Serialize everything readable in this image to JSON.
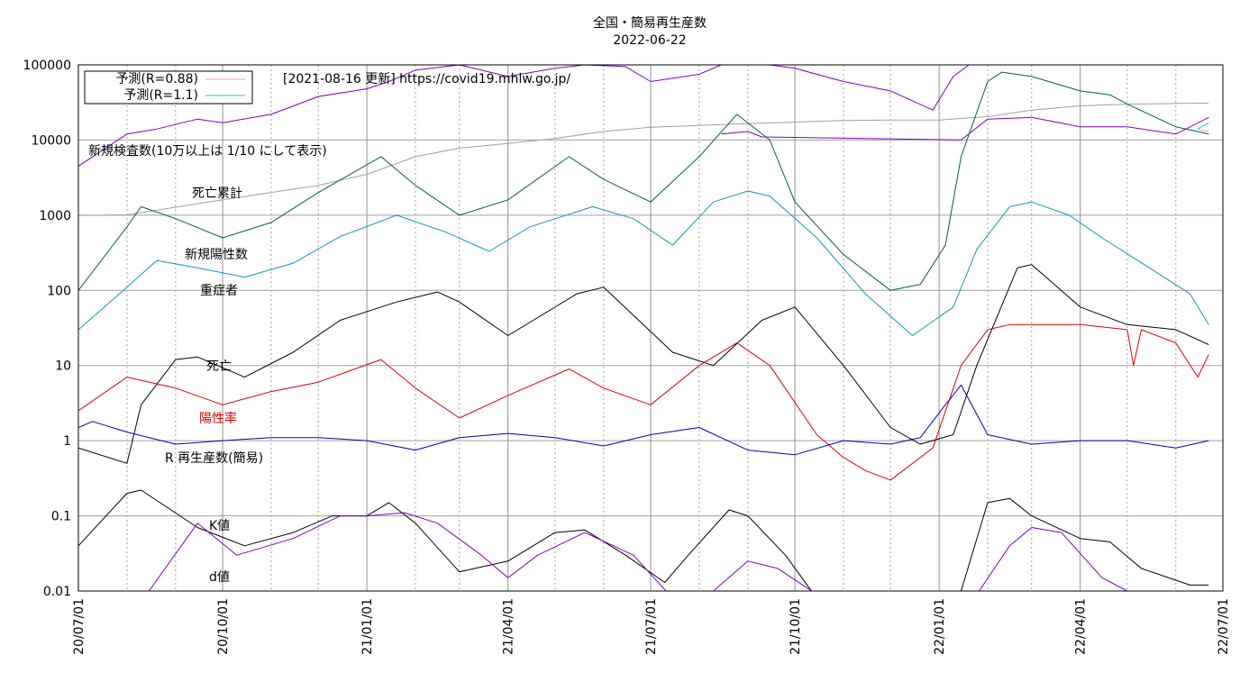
{
  "chart_data": {
    "type": "line",
    "title": "全国・簡易再生産数",
    "subtitle": "2022-06-22",
    "source_note": "[2021-08-16 更新] https://covid19.mhlw.go.jp/",
    "y_scale": "log",
    "ylim": [
      0.01,
      100000
    ],
    "y_ticks": [
      "0.01",
      "0.1",
      "1",
      "10",
      "100",
      "1000",
      "10000",
      "100000"
    ],
    "x_range": [
      "2020-07-01",
      "2022-07-01"
    ],
    "x_ticks": [
      "20/07/01",
      "20/10/01",
      "21/01/01",
      "21/04/01",
      "21/07/01",
      "21/10/01",
      "22/01/01",
      "22/04/01",
      "22/07/01"
    ],
    "grid": true,
    "legend_position": "top-left",
    "legend": [
      {
        "label": "予測(R=0.88)",
        "color": "#f0a0a0"
      },
      {
        "label": "予測(R=1.1)",
        "color": "#20c8c8"
      }
    ],
    "annotations": [
      {
        "text": "新規検査数(10万以上は 1/10 にして表示)",
        "color": "#000000"
      },
      {
        "text": "死亡累計",
        "color": "#000000"
      },
      {
        "text": "新規陽性数",
        "color": "#000000"
      },
      {
        "text": "重症者",
        "color": "#000000"
      },
      {
        "text": "死亡",
        "color": "#000000"
      },
      {
        "text": "陽性率",
        "color": "#e00000"
      },
      {
        "text": "R 再生産数(簡易)",
        "color": "#000000"
      },
      {
        "text": "K値",
        "color": "#000000"
      },
      {
        "text": "d値",
        "color": "#000000"
      }
    ],
    "series": [
      {
        "key": "tests",
        "color": "#8000c0",
        "x": [
          "2020-07-01",
          "2020-08-01",
          "2020-08-20",
          "2020-09-15",
          "2020-10-01",
          "2020-11-01",
          "2020-12-01",
          "2021-01-01",
          "2021-01-15",
          "2021-02-01",
          "2021-03-01",
          "2021-04-01",
          "2021-05-01",
          "2021-05-20",
          "2021-06-15",
          "2021-07-01",
          "2021-08-01",
          "2021-08-15",
          "2021-09-01",
          "2021-09-15",
          "2021-10-01",
          "2021-11-01",
          "2021-12-01",
          "2021-12-28",
          "2022-01-10",
          "2022-01-20",
          "2022-02-01",
          "2022-02-15",
          "2022-03-01",
          "2022-04-01",
          "2022-05-01",
          "2022-06-01",
          "2022-06-22"
        ],
        "values": [
          4500,
          12000,
          14000,
          19000,
          17000,
          22000,
          38000,
          48000,
          60000,
          85000,
          100000,
          70000,
          90000,
          100000,
          95000,
          60000,
          75000,
          100000,
          100000,
          100000,
          90000,
          60000,
          45000,
          25000,
          70000,
          100000,
          100000,
          100000,
          100000,
          100000,
          100000,
          100000,
          100000
        ]
      },
      {
        "key": "tests_reduced",
        "color": "#8000c0",
        "x": [
          "2021-08-15",
          "2021-09-01",
          "2021-09-10",
          "2022-01-15",
          "2022-02-01",
          "2022-03-01",
          "2022-04-01",
          "2022-05-01",
          "2022-06-01",
          "2022-06-22"
        ],
        "values": [
          12000,
          13000,
          11000,
          10000,
          19000,
          20000,
          15000,
          15000,
          12000,
          20000
        ]
      },
      {
        "key": "deaths_cumulative",
        "color": "#a0a0a0",
        "x": [
          "2020-07-01",
          "2020-08-01",
          "2020-10-01",
          "2020-12-01",
          "2021-01-01",
          "2021-02-01",
          "2021-03-01",
          "2021-04-01",
          "2021-05-01",
          "2021-06-01",
          "2021-07-01",
          "2021-09-01",
          "2021-11-01",
          "2021-12-01",
          "2022-01-01",
          "2022-02-01",
          "2022-03-01",
          "2022-04-01",
          "2022-05-01",
          "2022-06-22"
        ],
        "values": [
          990,
          1010,
          1600,
          2500,
          3500,
          6000,
          7800,
          9000,
          10500,
          13000,
          14800,
          16500,
          18200,
          18400,
          18400,
          20500,
          25000,
          28500,
          30000,
          31000
        ]
      },
      {
        "key": "new_positive",
        "color": "#006040",
        "x": [
          "2020-07-01",
          "2020-08-01",
          "2020-08-10",
          "2020-09-01",
          "2020-10-01",
          "2020-11-01",
          "2020-12-01",
          "2021-01-10",
          "2021-02-01",
          "2021-03-01",
          "2021-04-01",
          "2021-05-10",
          "2021-06-01",
          "2021-07-01",
          "2021-08-01",
          "2021-08-25",
          "2021-09-15",
          "2021-10-01",
          "2021-11-01",
          "2021-12-01",
          "2021-12-20",
          "2022-01-05",
          "2022-01-15",
          "2022-02-01",
          "2022-02-10",
          "2022-03-01",
          "2022-04-01",
          "2022-04-20",
          "2022-05-01",
          "2022-06-01",
          "2022-06-22"
        ],
        "values": [
          100,
          700,
          1300,
          900,
          500,
          800,
          2000,
          6000,
          2500,
          1000,
          1600,
          6000,
          3000,
          1500,
          6000,
          22000,
          10000,
          1500,
          300,
          100,
          120,
          400,
          6000,
          60000,
          80000,
          70000,
          45000,
          40000,
          30000,
          15000,
          12000
        ]
      },
      {
        "key": "severe",
        "color": "#1890c8",
        "x": [
          "2020-07-01",
          "2020-08-01",
          "2020-08-20",
          "2020-09-15",
          "2020-10-15",
          "2020-11-15",
          "2020-12-15",
          "2021-01-20",
          "2021-02-20",
          "2021-03-20",
          "2021-04-15",
          "2021-05-25",
          "2021-06-20",
          "2021-07-15",
          "2021-08-10",
          "2021-09-01",
          "2021-09-15",
          "2021-10-15",
          "2021-11-15",
          "2021-12-15",
          "2022-01-10",
          "2022-01-25",
          "2022-02-15",
          "2022-03-01",
          "2022-03-25",
          "2022-04-15",
          "2022-05-15",
          "2022-06-10",
          "2022-06-22"
        ],
        "values": [
          30,
          110,
          250,
          200,
          150,
          230,
          520,
          1000,
          600,
          330,
          700,
          1300,
          900,
          400,
          1500,
          2100,
          1800,
          500,
          90,
          25,
          60,
          350,
          1300,
          1500,
          1000,
          500,
          200,
          90,
          35
        ]
      },
      {
        "key": "deaths",
        "color": "#000000",
        "x": [
          "2020-07-01",
          "2020-08-01",
          "2020-08-10",
          "2020-09-01",
          "2020-09-15",
          "2020-10-15",
          "2020-11-15",
          "2020-12-15",
          "2021-01-20",
          "2021-02-15",
          "2021-03-01",
          "2021-04-01",
          "2021-05-15",
          "2021-06-01",
          "2021-07-15",
          "2021-08-10",
          "2021-09-10",
          "2021-10-01",
          "2021-11-01",
          "2021-12-01",
          "2021-12-20",
          "2022-01-10",
          "2022-01-25",
          "2022-02-20",
          "2022-03-01",
          "2022-04-01",
          "2022-05-01",
          "2022-06-01",
          "2022-06-22"
        ],
        "values": [
          0.8,
          0.5,
          3,
          12,
          13,
          7,
          15,
          40,
          70,
          95,
          70,
          25,
          90,
          110,
          15,
          10,
          40,
          60,
          10,
          1.5,
          0.9,
          1.2,
          10,
          200,
          220,
          60,
          35,
          30,
          19
        ]
      },
      {
        "key": "positivity",
        "color": "#e00000",
        "x": [
          "2020-07-01",
          "2020-08-01",
          "2020-09-01",
          "2020-10-01",
          "2020-11-01",
          "2020-12-01",
          "2021-01-10",
          "2021-02-01",
          "2021-03-01",
          "2021-04-01",
          "2021-05-10",
          "2021-06-01",
          "2021-07-01",
          "2021-08-01",
          "2021-08-25",
          "2021-09-15",
          "2021-10-15",
          "2021-11-01",
          "2021-11-15",
          "2021-12-01",
          "2021-12-28",
          "2022-01-15",
          "2022-02-01",
          "2022-02-15",
          "2022-04-01",
          "2022-05-01",
          "2022-05-05",
          "2022-05-10",
          "2022-06-01",
          "2022-06-15",
          "2022-06-22"
        ],
        "values": [
          2.5,
          7,
          5,
          3,
          4.5,
          6,
          12,
          5,
          2,
          4,
          9,
          5,
          3,
          10,
          20,
          10,
          1.2,
          0.6,
          0.4,
          0.3,
          0.8,
          10,
          30,
          35,
          35,
          30,
          10,
          30,
          20,
          7,
          14
        ]
      },
      {
        "key": "R",
        "color": "#0000c0",
        "x": [
          "2020-07-01",
          "2020-07-10",
          "2020-08-01",
          "2020-09-01",
          "2020-10-01",
          "2020-11-01",
          "2020-12-01",
          "2021-01-01",
          "2021-02-01",
          "2021-03-01",
          "2021-04-01",
          "2021-05-01",
          "2021-06-01",
          "2021-07-01",
          "2021-08-01",
          "2021-09-01",
          "2021-10-01",
          "2021-11-01",
          "2021-12-01",
          "2021-12-20",
          "2022-01-05",
          "2022-01-15",
          "2022-02-01",
          "2022-03-01",
          "2022-04-01",
          "2022-05-01",
          "2022-06-01",
          "2022-06-22"
        ],
        "values": [
          1.5,
          1.8,
          1.3,
          0.9,
          1.0,
          1.1,
          1.1,
          1.0,
          0.75,
          1.1,
          1.25,
          1.1,
          0.85,
          1.2,
          1.5,
          0.75,
          0.65,
          1.0,
          0.9,
          1.1,
          3,
          5.5,
          1.2,
          0.9,
          1.0,
          1.0,
          0.8,
          1.0
        ]
      },
      {
        "key": "K",
        "color": "#000000",
        "x": [
          "2020-07-01",
          "2020-08-01",
          "2020-08-10",
          "2020-09-15",
          "2020-10-15",
          "2020-11-15",
          "2020-12-10",
          "2021-01-01",
          "2021-01-15",
          "2021-02-01",
          "2021-03-01",
          "2021-04-01",
          "2021-05-01",
          "2021-05-20",
          "2021-06-15",
          "2021-07-10",
          "2021-07-25",
          "2021-08-20",
          "2021-09-01",
          "2021-09-25",
          "2021-10-15",
          "2022-01-15",
          "2022-02-01",
          "2022-02-15",
          "2022-03-01",
          "2022-04-01",
          "2022-04-20",
          "2022-05-10",
          "2022-06-10",
          "2022-06-22"
        ],
        "values": [
          0.04,
          0.2,
          0.22,
          0.07,
          0.04,
          0.06,
          0.1,
          0.1,
          0.15,
          0.08,
          0.018,
          0.025,
          0.06,
          0.065,
          0.03,
          0.013,
          0.03,
          0.12,
          0.1,
          0.03,
          0.008,
          0.01,
          0.15,
          0.17,
          0.1,
          0.05,
          0.045,
          0.02,
          0.012,
          0.012
        ]
      },
      {
        "key": "d",
        "color": "#8000c0",
        "x": [
          "2020-08-15",
          "2020-09-15",
          "2020-10-10",
          "2020-11-15",
          "2020-12-15",
          "2021-01-01",
          "2021-01-25",
          "2021-02-15",
          "2021-03-15",
          "2021-04-01",
          "2021-04-20",
          "2021-05-20",
          "2021-06-20",
          "2021-07-15",
          "2021-08-10",
          "2021-09-01",
          "2021-09-20",
          "2021-10-15",
          "2022-01-25",
          "2022-02-15",
          "2022-03-01",
          "2022-03-20",
          "2022-04-15",
          "2022-05-01"
        ],
        "values": [
          0.01,
          0.08,
          0.03,
          0.05,
          0.1,
          0.1,
          0.11,
          0.08,
          0.03,
          0.015,
          0.03,
          0.06,
          0.03,
          0.008,
          0.01,
          0.025,
          0.02,
          0.009,
          0.009,
          0.04,
          0.07,
          0.06,
          0.015,
          0.01
        ]
      },
      {
        "key": "pred_R_0_88",
        "color": "#f0a0a0",
        "x": [
          "2022-06-15",
          "2022-06-22"
        ],
        "values": [
          14000,
          13000
        ]
      },
      {
        "key": "pred_R_1_1",
        "color": "#20c8c8",
        "x": [
          "2022-06-15",
          "2022-06-22"
        ],
        "values": [
          14000,
          17000
        ]
      }
    ]
  }
}
